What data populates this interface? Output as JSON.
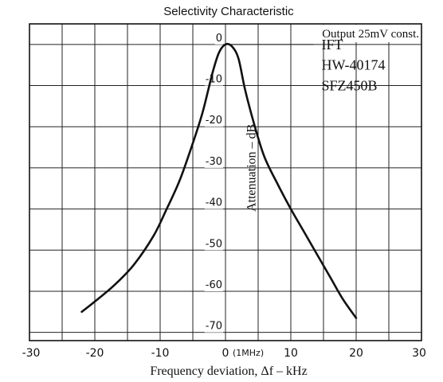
{
  "chart_data": {
    "type": "line",
    "title": "Selectivity Characteristic",
    "xlabel": "Frequency deviation, Δf  –  kHz",
    "ylabel": "Attenuation  –  dB",
    "xlim": [
      -30,
      30
    ],
    "ylim": [
      -72,
      5
    ],
    "grid": true,
    "x_ticks": [
      {
        "value": -30,
        "label": "-30"
      },
      {
        "value": -20,
        "label": "-20"
      },
      {
        "value": -10,
        "label": "-10"
      },
      {
        "value": 0,
        "label": "0"
      },
      {
        "value": 10,
        "label": "10"
      },
      {
        "value": 20,
        "label": "20"
      },
      {
        "value": 30,
        "label": "30"
      }
    ],
    "x_tick_center_note": "(1MHz)",
    "y_ticks": [
      {
        "value": 0,
        "label": "0"
      },
      {
        "value": -10,
        "label": "-10"
      },
      {
        "value": -20,
        "label": "-20"
      },
      {
        "value": -30,
        "label": "-30"
      },
      {
        "value": -40,
        "label": "-40"
      },
      {
        "value": -50,
        "label": "-50"
      },
      {
        "value": -60,
        "label": "-60"
      },
      {
        "value": -70,
        "label": "-70"
      }
    ],
    "annotations": {
      "condition": "Output 25mV const.",
      "legend_lines": [
        "IFT",
        "HW-40174",
        "SFZ450B"
      ]
    },
    "series": [
      {
        "x": [
          -22,
          -20,
          -17,
          -14,
          -11,
          -9,
          -7,
          -5,
          -3.5,
          -2,
          -1,
          0,
          1,
          2,
          3,
          4.5,
          6,
          8,
          10,
          12,
          14,
          16,
          18,
          20
        ],
        "y": [
          -65,
          -62.5,
          -58.5,
          -53.5,
          -46.5,
          -40,
          -33,
          -24,
          -16.5,
          -7,
          -2,
          0,
          -0.5,
          -3.5,
          -11,
          -20,
          -27.5,
          -34,
          -40,
          -45.5,
          -51,
          -56.5,
          -62,
          -66.5
        ]
      }
    ]
  }
}
